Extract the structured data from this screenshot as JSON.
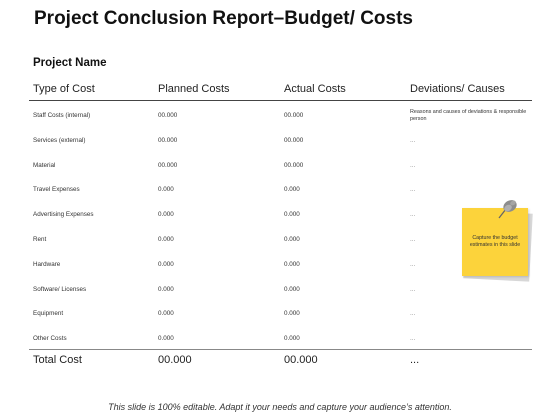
{
  "title": "Project Conclusion Report–Budget/ Costs",
  "project_name": "Project  Name",
  "headers": [
    "Type of Cost",
    "Planned Costs",
    "Actual Costs",
    "Deviations/ Causes"
  ],
  "rows": [
    {
      "type": "Staff Costs (internal)",
      "planned": "00.000",
      "actual": "00.000",
      "deviation": "Reasons and causes of deviations & responsible person"
    },
    {
      "type": "Services (external)",
      "planned": "00.000",
      "actual": "00.000",
      "deviation": "..."
    },
    {
      "type": "Material",
      "planned": "00.000",
      "actual": "00.000",
      "deviation": "..."
    },
    {
      "type": "Travel  Expenses",
      "planned": "0.000",
      "actual": "0.000",
      "deviation": "..."
    },
    {
      "type": "Advertising  Expenses",
      "planned": "0.000",
      "actual": "0.000",
      "deviation": "..."
    },
    {
      "type": "Rent",
      "planned": "0.000",
      "actual": "0.000",
      "deviation": "..."
    },
    {
      "type": "Hardware",
      "planned": "0.000",
      "actual": "0.000",
      "deviation": "..."
    },
    {
      "type": "Software/  Licenses",
      "planned": "0.000",
      "actual": "0.000",
      "deviation": "..."
    },
    {
      "type": "Equipment",
      "planned": "0.000",
      "actual": "0.000",
      "deviation": "..."
    },
    {
      "type": "Other Costs",
      "planned": "0.000",
      "actual": "0.000",
      "deviation": "..."
    }
  ],
  "total": {
    "label": "Total Cost",
    "planned": "00.000",
    "actual": "00.000",
    "deviation": "..."
  },
  "sticky_note": {
    "text": "Capture the budget estimates in this slide",
    "color": "#fcd33b"
  },
  "footer": "This slide is 100% editable. Adapt it your needs and capture your audience’s attention."
}
